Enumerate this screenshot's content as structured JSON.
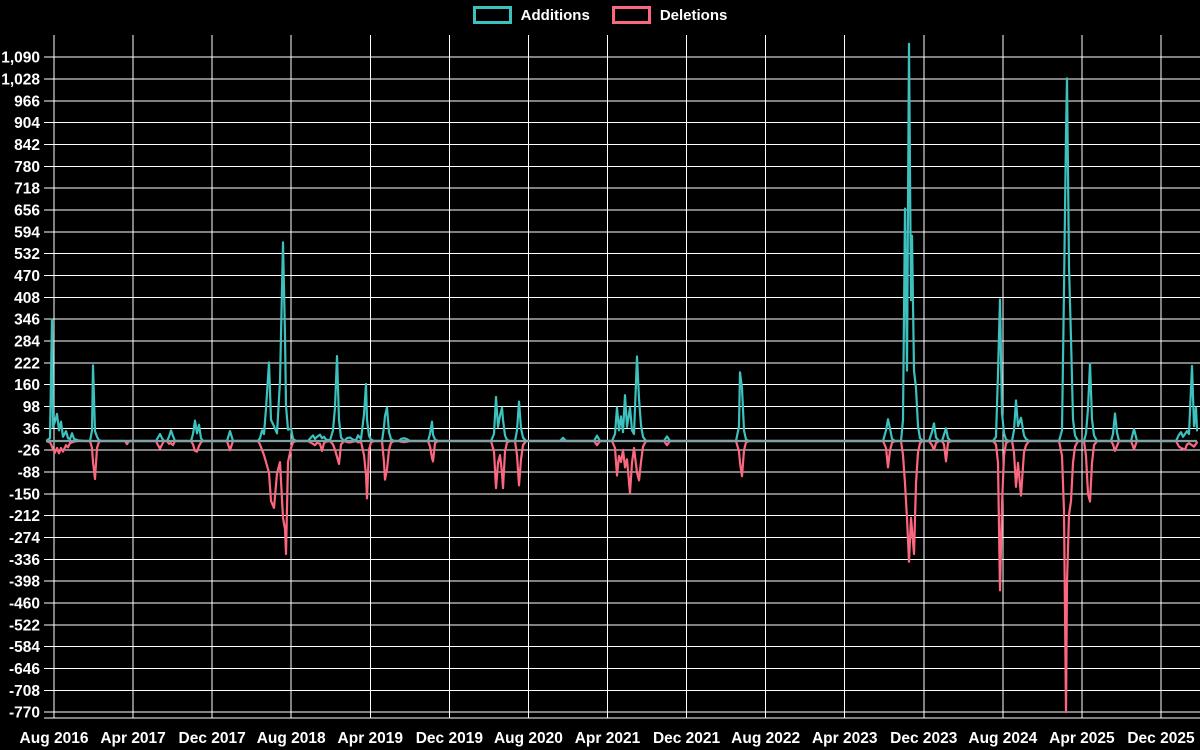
{
  "chart_data": {
    "type": "line",
    "title": "",
    "xlabel": "",
    "ylabel": "",
    "legend_position": "top-center",
    "grid": true,
    "background_color": "#000000",
    "grid_color": "#ffffff",
    "text_color": "#ffffff",
    "zero_line_color": "#7fa0a5",
    "series": [
      {
        "name": "Additions",
        "color": "#3cc1be"
      },
      {
        "name": "Deletions",
        "color": "#fb677f"
      }
    ],
    "x_tick_labels": [
      "Aug 2016",
      "Apr 2017",
      "Dec 2017",
      "Aug 2018",
      "Apr 2019",
      "Dec 2019",
      "Aug 2020",
      "Apr 2021",
      "Dec 2021",
      "Aug 2022",
      "Apr 2023",
      "Dec 2023",
      "Aug 2024",
      "Apr 2025",
      "Dec 2025"
    ],
    "y_tick_labels": [
      "1,090",
      "1,028",
      "966",
      "904",
      "842",
      "780",
      "718",
      "656",
      "594",
      "532",
      "470",
      "408",
      "346",
      "284",
      "222",
      "160",
      "98",
      "36",
      "-26",
      "-88",
      "-150",
      "-212",
      "-274",
      "-336",
      "-398",
      "-460",
      "-522",
      "-584",
      "-646",
      "-708",
      "-770"
    ],
    "axis": {
      "y_min": -770,
      "y_max": 1090,
      "y_step": 62,
      "x_start": "Jul 2016",
      "x_end": "Mar 2026",
      "x_unit": "week"
    },
    "points_format": [
      "x_px",
      "additions",
      "deletions"
    ],
    "points": [
      [
        47,
        2,
        -1
      ],
      [
        50,
        8,
        -4
      ],
      [
        52,
        346,
        -15
      ],
      [
        53,
        40,
        -25
      ],
      [
        55,
        55,
        -33
      ],
      [
        57,
        77,
        -20
      ],
      [
        59,
        30,
        -35
      ],
      [
        61,
        55,
        -20
      ],
      [
        63,
        12,
        -30
      ],
      [
        66,
        28,
        -12
      ],
      [
        68,
        8,
        -18
      ],
      [
        70,
        5,
        -6
      ],
      [
        72,
        22,
        -4
      ],
      [
        74,
        6,
        -2
      ],
      [
        78,
        2,
        0
      ],
      [
        85,
        0,
        0
      ],
      [
        90,
        0,
        0
      ],
      [
        92,
        30,
        -20
      ],
      [
        93,
        215,
        -60
      ],
      [
        95,
        28,
        -108
      ],
      [
        97,
        12,
        -20
      ],
      [
        99,
        2,
        -2
      ],
      [
        102,
        0,
        0
      ],
      [
        125,
        0,
        0
      ],
      [
        127,
        0,
        -9
      ],
      [
        129,
        0,
        0
      ],
      [
        156,
        0,
        0
      ],
      [
        158,
        10,
        -12
      ],
      [
        160,
        20,
        -22
      ],
      [
        162,
        8,
        -10
      ],
      [
        164,
        0,
        0
      ],
      [
        167,
        0,
        0
      ],
      [
        169,
        12,
        -8
      ],
      [
        171,
        30,
        -6
      ],
      [
        173,
        14,
        -12
      ],
      [
        175,
        0,
        0
      ],
      [
        191,
        0,
        0
      ],
      [
        193,
        20,
        -10
      ],
      [
        195,
        58,
        -28
      ],
      [
        197,
        22,
        -30
      ],
      [
        199,
        46,
        -14
      ],
      [
        201,
        8,
        -4
      ],
      [
        203,
        0,
        0
      ],
      [
        227,
        0,
        0
      ],
      [
        230,
        28,
        -26
      ],
      [
        233,
        0,
        0
      ],
      [
        258,
        0,
        0
      ],
      [
        260,
        8,
        -10
      ],
      [
        262,
        30,
        -25
      ],
      [
        264,
        20,
        -40
      ],
      [
        266,
        92,
        -60
      ],
      [
        269,
        223,
        -90
      ],
      [
        271,
        60,
        -170
      ],
      [
        274,
        42,
        -190
      ],
      [
        277,
        22,
        -92
      ],
      [
        280,
        170,
        -60
      ],
      [
        283,
        564,
        -218
      ],
      [
        285,
        300,
        -250
      ],
      [
        286,
        100,
        -321
      ],
      [
        288,
        32,
        -60
      ],
      [
        291,
        36,
        -20
      ],
      [
        293,
        6,
        -4
      ],
      [
        296,
        0,
        0
      ],
      [
        308,
        0,
        0
      ],
      [
        311,
        10,
        -5
      ],
      [
        313,
        16,
        -8
      ],
      [
        315,
        6,
        -12
      ],
      [
        317,
        12,
        -5
      ],
      [
        320,
        18,
        -8
      ],
      [
        322,
        8,
        -28
      ],
      [
        324,
        12,
        -6
      ],
      [
        326,
        4,
        -2
      ],
      [
        330,
        2,
        0
      ],
      [
        333,
        30,
        -10
      ],
      [
        335,
        95,
        -25
      ],
      [
        337,
        241,
        -45
      ],
      [
        339,
        60,
        -65
      ],
      [
        341,
        10,
        -10
      ],
      [
        344,
        0,
        0
      ],
      [
        347,
        8,
        -3
      ],
      [
        350,
        10,
        -4
      ],
      [
        353,
        4,
        -2
      ],
      [
        356,
        2,
        0
      ],
      [
        358,
        16,
        -4
      ],
      [
        361,
        6,
        -2
      ],
      [
        364,
        75,
        -40
      ],
      [
        366,
        162,
        -95
      ],
      [
        367,
        60,
        -163
      ],
      [
        369,
        15,
        -25
      ],
      [
        371,
        4,
        -4
      ],
      [
        374,
        0,
        0
      ],
      [
        382,
        0,
        0
      ],
      [
        384,
        40,
        -60
      ],
      [
        385,
        71,
        -110
      ],
      [
        387,
        95,
        -80
      ],
      [
        389,
        25,
        -25
      ],
      [
        391,
        5,
        -5
      ],
      [
        394,
        0,
        0
      ],
      [
        399,
        0,
        0
      ],
      [
        401,
        6,
        -2
      ],
      [
        404,
        8,
        -3
      ],
      [
        407,
        5,
        -2
      ],
      [
        410,
        0,
        0
      ],
      [
        428,
        0,
        0
      ],
      [
        430,
        20,
        -15
      ],
      [
        432,
        55,
        -48
      ],
      [
        433,
        18,
        -58
      ],
      [
        435,
        4,
        -6
      ],
      [
        438,
        0,
        0
      ],
      [
        491,
        0,
        0
      ],
      [
        494,
        20,
        -30
      ],
      [
        496,
        125,
        -134
      ],
      [
        498,
        40,
        -62
      ],
      [
        500,
        72,
        -40
      ],
      [
        502,
        95,
        -90
      ],
      [
        503,
        60,
        -134
      ],
      [
        505,
        16,
        -30
      ],
      [
        507,
        3,
        -4
      ],
      [
        510,
        0,
        0
      ],
      [
        515,
        0,
        0
      ],
      [
        517,
        30,
        -40
      ],
      [
        519,
        112,
        -126
      ],
      [
        521,
        36,
        -52
      ],
      [
        523,
        10,
        -12
      ],
      [
        526,
        0,
        0
      ],
      [
        560,
        0,
        0
      ],
      [
        563,
        9,
        0
      ],
      [
        566,
        0,
        0
      ],
      [
        594,
        0,
        0
      ],
      [
        597,
        15,
        -12
      ],
      [
        600,
        0,
        0
      ],
      [
        612,
        0,
        0
      ],
      [
        615,
        20,
        -20
      ],
      [
        617,
        95,
        -98
      ],
      [
        619,
        30,
        -42
      ],
      [
        621,
        70,
        -60
      ],
      [
        623,
        25,
        -25
      ],
      [
        625,
        130,
        -75
      ],
      [
        627,
        40,
        -52
      ],
      [
        630,
        95,
        -148
      ],
      [
        632,
        30,
        -62
      ],
      [
        634,
        20,
        -20
      ],
      [
        637,
        240,
        -90
      ],
      [
        639,
        120,
        -112
      ],
      [
        641,
        45,
        -60
      ],
      [
        643,
        12,
        -16
      ],
      [
        646,
        0,
        0
      ],
      [
        664,
        0,
        0
      ],
      [
        667,
        13,
        -12
      ],
      [
        670,
        0,
        0
      ],
      [
        736,
        0,
        0
      ],
      [
        739,
        42,
        -30
      ],
      [
        740,
        195,
        -62
      ],
      [
        742,
        150,
        -100
      ],
      [
        744,
        30,
        -26
      ],
      [
        746,
        4,
        -4
      ],
      [
        749,
        0,
        0
      ],
      [
        883,
        0,
        0
      ],
      [
        886,
        30,
        -20
      ],
      [
        888,
        62,
        -75
      ],
      [
        890,
        36,
        -26
      ],
      [
        892,
        6,
        -5
      ],
      [
        895,
        0,
        0
      ],
      [
        901,
        0,
        0
      ],
      [
        903,
        60,
        -40
      ],
      [
        905,
        660,
        -120
      ],
      [
        907,
        200,
        -220
      ],
      [
        909,
        1128,
        -343
      ],
      [
        911,
        400,
        -218
      ],
      [
        912,
        583,
        -252
      ],
      [
        914,
        200,
        -321
      ],
      [
        916,
        150,
        -120
      ],
      [
        918,
        42,
        -32
      ],
      [
        920,
        8,
        -6
      ],
      [
        923,
        0,
        0
      ],
      [
        929,
        0,
        0
      ],
      [
        932,
        26,
        -12
      ],
      [
        934,
        50,
        -25
      ],
      [
        936,
        10,
        -6
      ],
      [
        939,
        0,
        0
      ],
      [
        942,
        0,
        0
      ],
      [
        944,
        18,
        -10
      ],
      [
        946,
        36,
        -58
      ],
      [
        948,
        8,
        -5
      ],
      [
        951,
        0,
        0
      ],
      [
        993,
        0,
        0
      ],
      [
        996,
        12,
        -10
      ],
      [
        998,
        192,
        -62
      ],
      [
        1000,
        402,
        -424
      ],
      [
        1002,
        80,
        -180
      ],
      [
        1004,
        22,
        -42
      ],
      [
        1006,
        4,
        -6
      ],
      [
        1009,
        0,
        0
      ],
      [
        1012,
        0,
        0
      ],
      [
        1014,
        30,
        -32
      ],
      [
        1016,
        115,
        -130
      ],
      [
        1018,
        42,
        -62
      ],
      [
        1021,
        66,
        -155
      ],
      [
        1024,
        16,
        -32
      ],
      [
        1026,
        6,
        -12
      ],
      [
        1029,
        0,
        0
      ],
      [
        1059,
        0,
        0
      ],
      [
        1062,
        30,
        -42
      ],
      [
        1064,
        430,
        -200
      ],
      [
        1066,
        870,
        -770
      ],
      [
        1067,
        1030,
        -400
      ],
      [
        1069,
        495,
        -210
      ],
      [
        1071,
        290,
        -170
      ],
      [
        1073,
        62,
        -62
      ],
      [
        1075,
        16,
        -16
      ],
      [
        1078,
        0,
        0
      ],
      [
        1084,
        0,
        0
      ],
      [
        1086,
        22,
        -42
      ],
      [
        1088,
        92,
        -150
      ],
      [
        1090,
        220,
        -172
      ],
      [
        1092,
        62,
        -62
      ],
      [
        1094,
        16,
        -12
      ],
      [
        1097,
        0,
        0
      ],
      [
        1111,
        0,
        0
      ],
      [
        1113,
        20,
        -10
      ],
      [
        1115,
        78,
        -28
      ],
      [
        1117,
        24,
        -14
      ],
      [
        1119,
        0,
        0
      ],
      [
        1131,
        0,
        0
      ],
      [
        1134,
        34,
        -23
      ],
      [
        1137,
        0,
        0
      ],
      [
        1176,
        0,
        0
      ],
      [
        1179,
        18,
        -16
      ],
      [
        1181,
        25,
        -20
      ],
      [
        1183,
        12,
        -22
      ],
      [
        1185,
        20,
        -25
      ],
      [
        1187,
        28,
        -10
      ],
      [
        1189,
        20,
        -6
      ],
      [
        1192,
        213,
        -12
      ],
      [
        1194,
        42,
        -16
      ],
      [
        1196,
        95,
        -8
      ],
      [
        1197,
        30,
        -4
      ]
    ]
  }
}
